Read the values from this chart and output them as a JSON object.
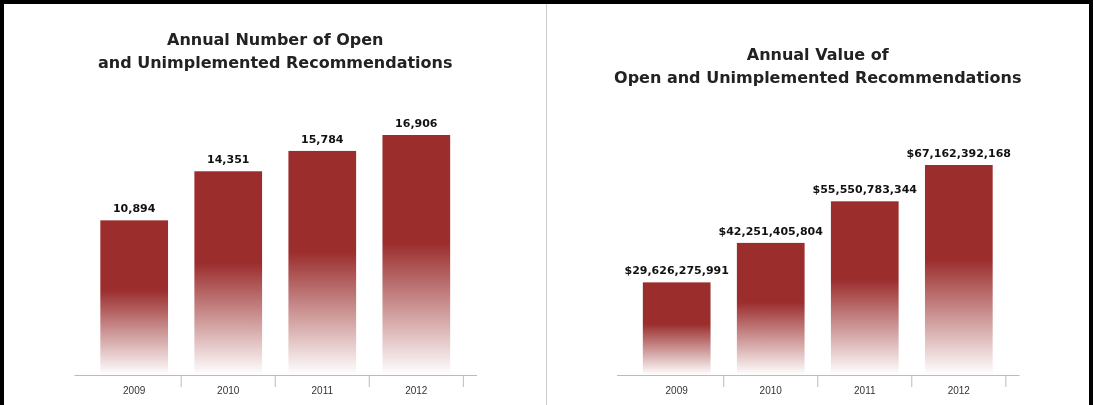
{
  "chart_data": [
    {
      "type": "bar",
      "title": "Annual Number of Open and Unimplemented Recommendations",
      "categories": [
        "2009",
        "2010",
        "2011",
        "2012"
      ],
      "values": [
        10894,
        14351,
        15784,
        16906
      ],
      "color": "#9b2d2d",
      "data_labels": true,
      "value_labels": [
        "10,894",
        "14,351",
        "15,784",
        "16,906"
      ]
    },
    {
      "type": "bar",
      "title": "Annual Value of Open and Unimplemented Recommendations",
      "categories": [
        "2009",
        "2010",
        "2011",
        "2012"
      ],
      "values": [
        29626275991,
        42251405804,
        55550783344,
        67162392168
      ],
      "color": "#9b2d2d",
      "data_labels": true,
      "value_labels": [
        "$29,626,275,991",
        "$42,251,405,804",
        "$55,550,783,344",
        "$67,162,392,168"
      ]
    }
  ]
}
